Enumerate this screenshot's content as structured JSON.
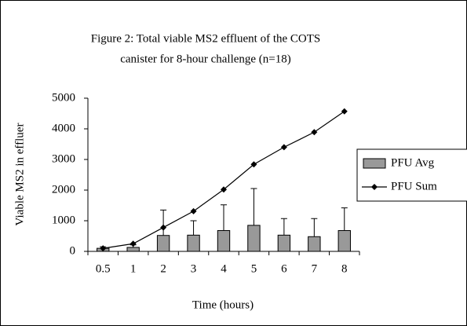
{
  "chart_data": {
    "type": "bar",
    "title": "Figure 2: Total viable MS2 effluent of the COTS",
    "subtitle": "canister for 8-hour challenge (n=18)",
    "x_label": "Time (hours)",
    "y_label": "Viable MS2 in effluer",
    "categories": [
      "0.5",
      "1",
      "2",
      "3",
      "4",
      "5",
      "6",
      "7",
      "8"
    ],
    "series": [
      {
        "name": "PFU Avg",
        "type": "bar",
        "color": "#999999",
        "values": [
          100,
          130,
          520,
          530,
          680,
          850,
          530,
          480,
          680
        ],
        "errors": [
          50,
          80,
          830,
          470,
          840,
          1200,
          540,
          590,
          740
        ]
      },
      {
        "name": "PFU Sum",
        "type": "line",
        "color": "#000000",
        "values": [
          100,
          250,
          780,
          1310,
          2020,
          2840,
          3400,
          3890,
          4570
        ]
      }
    ],
    "ylim": [
      0,
      5000
    ],
    "yticks": [
      0,
      1000,
      2000,
      3000,
      4000,
      5000
    ],
    "grid": false,
    "legend": "right"
  }
}
